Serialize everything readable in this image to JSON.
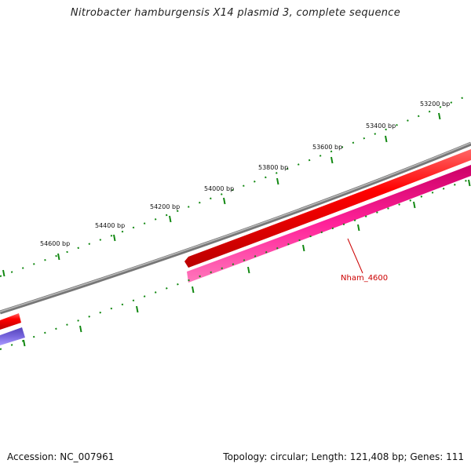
{
  "title": "Nitrobacter hamburgensis X14 plasmid 3, complete sequence",
  "footer": {
    "accession": "Accession: NC_007961",
    "summary": "Topology: circular; Length: 121,408 bp; Genes: 111"
  },
  "scale_labels": [
    "53200 bp",
    "53400 bp",
    "53600 bp",
    "53800 bp",
    "54000 bp",
    "54200 bp",
    "54400 bp",
    "54600 bp"
  ],
  "features": [
    {
      "label": "Nham_4600",
      "color": "#ee0077"
    }
  ],
  "colors": {
    "backbone": "#888888",
    "forward_cds": "#ee1111",
    "reverse_cds": "#ee3399",
    "other_cds": "#7766dd",
    "ticks": "#118811",
    "label": "#cc0000"
  }
}
